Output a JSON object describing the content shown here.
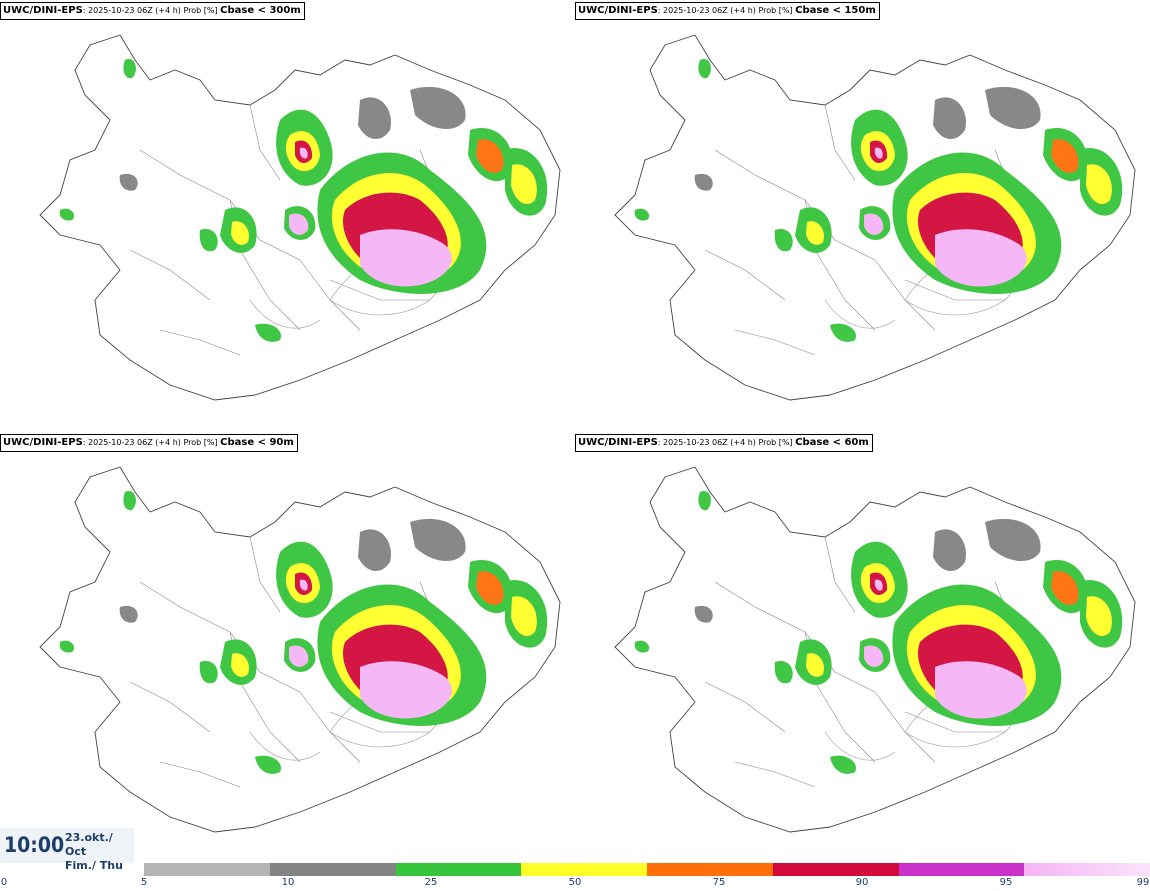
{
  "panels": [
    {
      "source": "UWC/DINI-EPS",
      "info": "2025-10-23 06Z (+4 h) Prob [%]",
      "threshold": "Cbase < 300m"
    },
    {
      "source": "UWC/DINI-EPS",
      "info": "2025-10-23 06Z (+4 h) Prob [%]",
      "threshold": "Cbase < 150m"
    },
    {
      "source": "UWC/DINI-EPS",
      "info": "2025-10-23 06Z (+4 h) Prob [%]",
      "threshold": "Cbase < 90m"
    },
    {
      "source": "UWC/DINI-EPS",
      "info": "2025-10-23 06Z (+4 h) Prob [%]",
      "threshold": "Cbase < 60m"
    }
  ],
  "valid_time": {
    "time": "10:00",
    "date_line1": "23.okt./ Oct",
    "date_line2": "Fim./ Thu"
  },
  "legend": {
    "ticks": [
      "0",
      "5",
      "10",
      "25",
      "50",
      "75",
      "90",
      "95",
      "99"
    ],
    "colors": [
      "#b4b4b4",
      "#828282",
      "#36c43c",
      "#ffff28",
      "#ff6e0a",
      "#d20a3c",
      "#c832c8",
      "#f5b4f5"
    ]
  }
}
